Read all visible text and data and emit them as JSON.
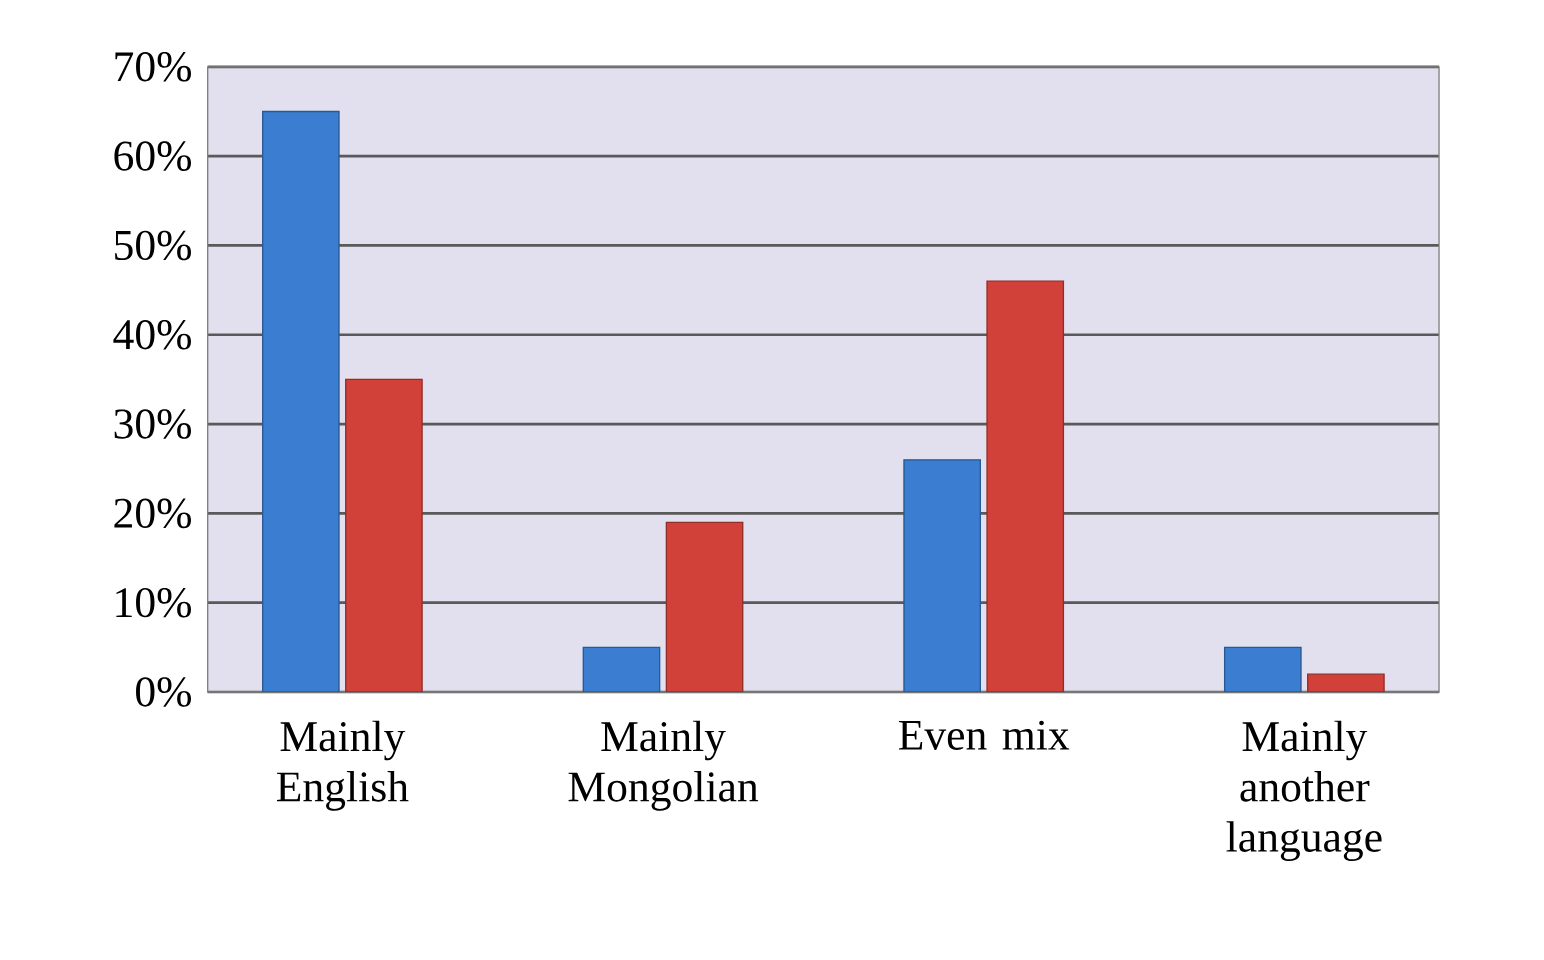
{
  "chart_data": {
    "type": "bar",
    "categories": [
      "Mainly English",
      "Mainly Mongolian",
      "Even mix",
      "Mainly another language"
    ],
    "series": [
      {
        "color": "#3b7dd0",
        "values": [
          65,
          5,
          26,
          5
        ]
      },
      {
        "color": "#d2403a",
        "values": [
          35,
          19,
          46,
          2
        ]
      }
    ],
    "ylim": [
      0,
      70
    ],
    "yticks": [
      {
        "value": 0,
        "label": "0%"
      },
      {
        "value": 10,
        "label": "10%"
      },
      {
        "value": 20,
        "label": "20%"
      },
      {
        "value": 30,
        "label": "30%"
      },
      {
        "value": 40,
        "label": "40%"
      },
      {
        "value": 50,
        "label": "50%"
      },
      {
        "value": 60,
        "label": "60%"
      },
      {
        "value": 70,
        "label": "70%"
      }
    ],
    "grid": "y"
  }
}
